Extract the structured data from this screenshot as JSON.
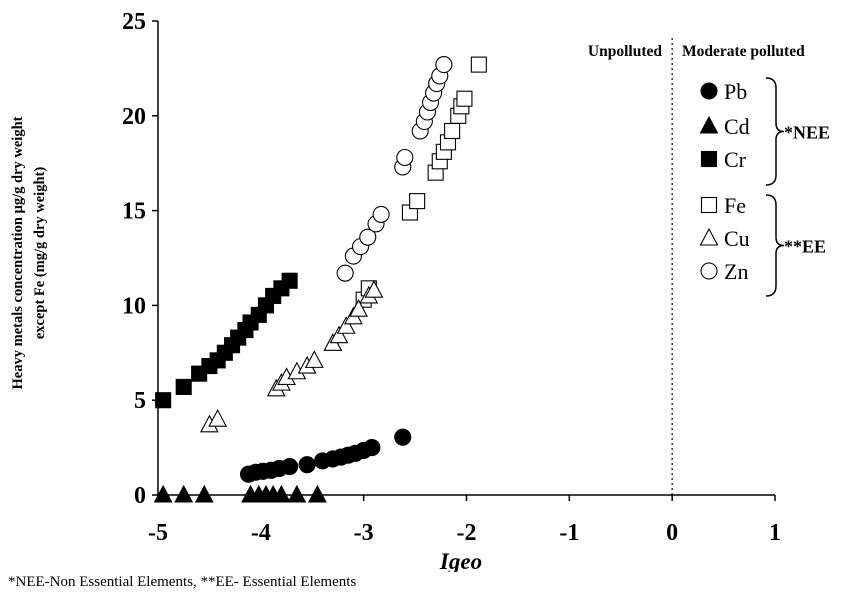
{
  "chart_data": {
    "type": "scatter",
    "xlabel": "Igeo",
    "ylabel_line1": "Heavy metals concentration µg/g dry weight",
    "ylabel_line2": "except Fe (mg/g dry weight)",
    "xlim": [
      -5,
      1
    ],
    "ylim": [
      0,
      25
    ],
    "x_ticks": [
      "-5",
      "-4",
      "-3",
      "-2",
      "-1",
      "0",
      "1"
    ],
    "y_ticks": [
      "0",
      "5",
      "10",
      "15",
      "20",
      "25"
    ],
    "divider_x": 0,
    "zone_labels": {
      "left": "Unpolluted",
      "right": "Moderate polluted"
    },
    "legend_groups": [
      {
        "label": "*NEE",
        "members": [
          "Pb",
          "Cd",
          "Cr"
        ]
      },
      {
        "label": "**EE",
        "members": [
          "Fe",
          "Cu",
          "Zn"
        ]
      }
    ],
    "series": [
      {
        "name": "Pb",
        "marker": "filled-circle",
        "points": [
          [
            -4.12,
            1.1
          ],
          [
            -4.05,
            1.2
          ],
          [
            -3.98,
            1.25
          ],
          [
            -3.9,
            1.3
          ],
          [
            -3.82,
            1.4
          ],
          [
            -3.72,
            1.5
          ],
          [
            -3.55,
            1.6
          ],
          [
            -3.4,
            1.8
          ],
          [
            -3.3,
            1.9
          ],
          [
            -3.22,
            2.0
          ],
          [
            -3.15,
            2.1
          ],
          [
            -3.08,
            2.2
          ],
          [
            -3.0,
            2.35
          ],
          [
            -2.92,
            2.5
          ],
          [
            -2.62,
            3.05
          ]
        ]
      },
      {
        "name": "Cd",
        "marker": "filled-triangle",
        "points": [
          [
            -4.95,
            0
          ],
          [
            -4.75,
            0
          ],
          [
            -4.55,
            0
          ],
          [
            -4.1,
            0
          ],
          [
            -4.02,
            0
          ],
          [
            -3.95,
            0
          ],
          [
            -3.88,
            0
          ],
          [
            -3.8,
            0
          ],
          [
            -3.65,
            0
          ],
          [
            -3.45,
            0
          ]
        ]
      },
      {
        "name": "Cr",
        "marker": "filled-square",
        "points": [
          [
            -4.95,
            5.0
          ],
          [
            -4.75,
            5.7
          ],
          [
            -4.6,
            6.4
          ],
          [
            -4.5,
            6.8
          ],
          [
            -4.42,
            7.1
          ],
          [
            -4.35,
            7.5
          ],
          [
            -4.28,
            7.9
          ],
          [
            -4.22,
            8.3
          ],
          [
            -4.15,
            8.7
          ],
          [
            -4.1,
            9.1
          ],
          [
            -4.02,
            9.5
          ],
          [
            -3.95,
            10.0
          ],
          [
            -3.88,
            10.5
          ],
          [
            -3.8,
            10.9
          ],
          [
            -3.72,
            11.3
          ]
        ]
      },
      {
        "name": "Fe",
        "marker": "open-square",
        "points": [
          [
            -3.0,
            10.3
          ],
          [
            -2.95,
            10.9
          ],
          [
            -2.55,
            14.9
          ],
          [
            -2.48,
            15.5
          ],
          [
            -2.3,
            17.0
          ],
          [
            -2.26,
            17.6
          ],
          [
            -2.22,
            18.1
          ],
          [
            -2.18,
            18.6
          ],
          [
            -2.14,
            19.2
          ],
          [
            -2.08,
            20.0
          ],
          [
            -2.05,
            20.5
          ],
          [
            -2.02,
            20.9
          ],
          [
            -1.88,
            22.7
          ]
        ]
      },
      {
        "name": "Cu",
        "marker": "open-triangle",
        "points": [
          [
            -4.5,
            3.7
          ],
          [
            -4.42,
            4.0
          ],
          [
            -3.85,
            5.6
          ],
          [
            -3.8,
            5.9
          ],
          [
            -3.75,
            6.2
          ],
          [
            -3.65,
            6.5
          ],
          [
            -3.55,
            6.8
          ],
          [
            -3.48,
            7.1
          ],
          [
            -3.3,
            8.0
          ],
          [
            -3.24,
            8.4
          ],
          [
            -3.17,
            8.9
          ],
          [
            -3.1,
            9.4
          ],
          [
            -3.05,
            9.8
          ],
          [
            -2.95,
            10.5
          ],
          [
            -2.9,
            10.8
          ]
        ]
      },
      {
        "name": "Zn",
        "marker": "open-circle",
        "points": [
          [
            -3.18,
            11.7
          ],
          [
            -3.1,
            12.6
          ],
          [
            -3.03,
            13.1
          ],
          [
            -2.96,
            13.6
          ],
          [
            -2.88,
            14.3
          ],
          [
            -2.83,
            14.8
          ],
          [
            -2.62,
            17.3
          ],
          [
            -2.6,
            17.8
          ],
          [
            -2.45,
            19.2
          ],
          [
            -2.41,
            19.7
          ],
          [
            -2.38,
            20.2
          ],
          [
            -2.35,
            20.7
          ],
          [
            -2.32,
            21.2
          ],
          [
            -2.29,
            21.7
          ],
          [
            -2.26,
            22.1
          ],
          [
            -2.22,
            22.7
          ]
        ]
      }
    ]
  },
  "footnote": "*NEE-Non Essential Elements, **EE- Essential Elements"
}
